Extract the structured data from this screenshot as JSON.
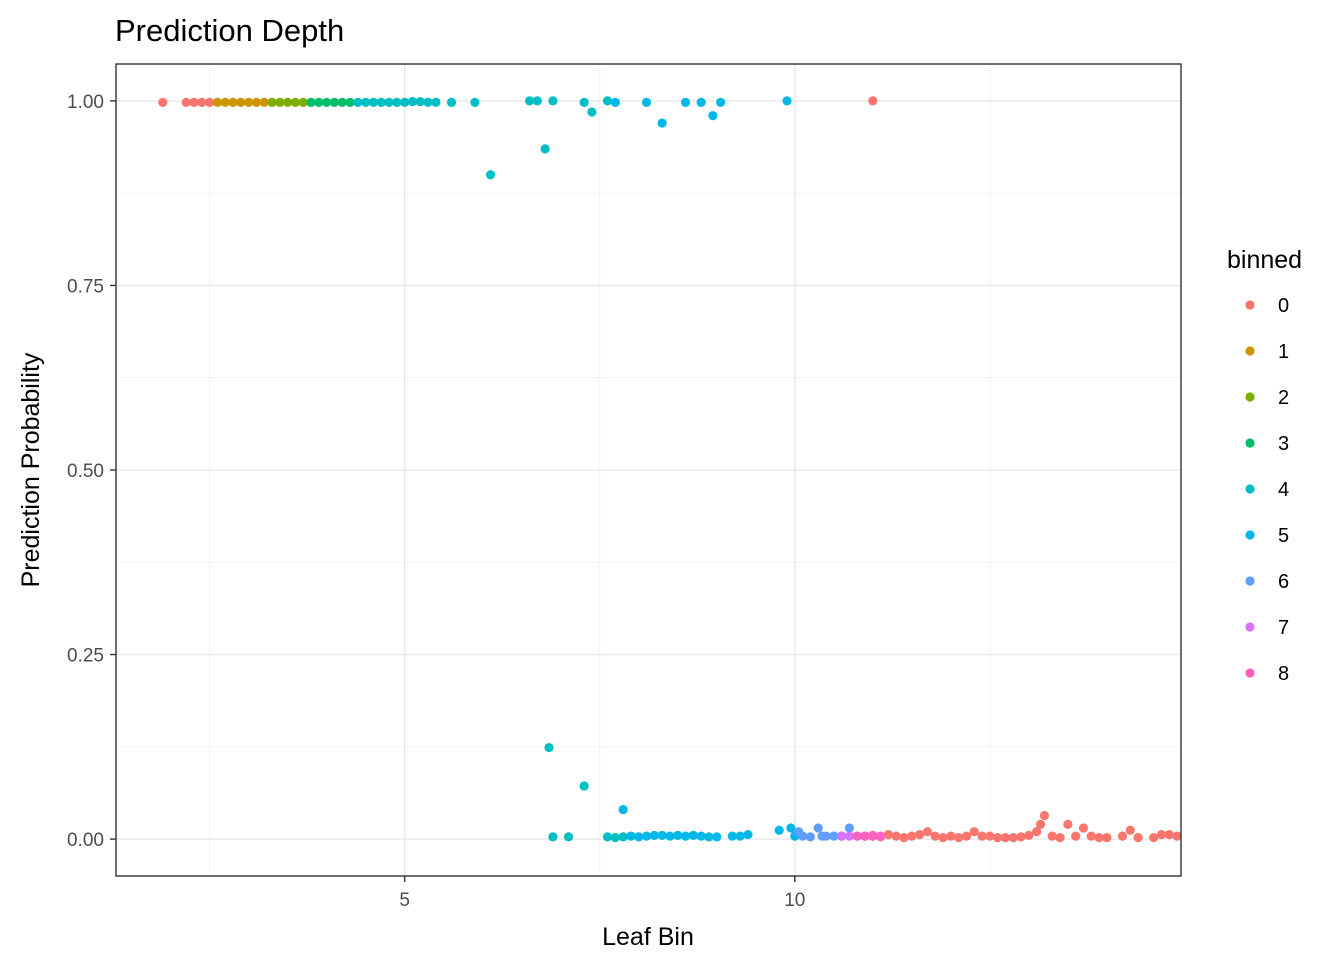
{
  "chart_data": {
    "type": "scatter",
    "title": "Prediction Depth",
    "xlabel": "Leaf Bin",
    "ylabel": "Prediction Probability",
    "xlim": [
      1.3,
      14.95
    ],
    "ylim": [
      -0.05,
      1.05
    ],
    "x_ticks": [
      5,
      10
    ],
    "x_tick_labels": [
      "5",
      "10"
    ],
    "y_ticks": [
      0,
      0.25,
      0.5,
      0.75,
      1
    ],
    "y_tick_labels": [
      "0.00",
      "0.25",
      "0.50",
      "0.75",
      "1.00"
    ],
    "grid": true,
    "legend": {
      "title": "binned",
      "position": "right"
    },
    "series": [
      {
        "name": "0",
        "color": "#F8766D",
        "points": [
          [
            1.9,
            0.998
          ],
          [
            2.2,
            0.998
          ],
          [
            2.3,
            0.998
          ],
          [
            2.4,
            0.998
          ],
          [
            2.5,
            0.998
          ],
          [
            11.0,
            1.0
          ],
          [
            10.9,
            0.004
          ],
          [
            11.0,
            0.005
          ],
          [
            11.1,
            0.003
          ],
          [
            11.2,
            0.006
          ],
          [
            11.3,
            0.004
          ],
          [
            11.4,
            0.002
          ],
          [
            11.5,
            0.004
          ],
          [
            11.6,
            0.006
          ],
          [
            11.7,
            0.01
          ],
          [
            11.8,
            0.004
          ],
          [
            11.9,
            0.002
          ],
          [
            12.0,
            0.004
          ],
          [
            12.1,
            0.002
          ],
          [
            12.2,
            0.004
          ],
          [
            12.3,
            0.01
          ],
          [
            12.4,
            0.004
          ],
          [
            12.5,
            0.004
          ],
          [
            12.6,
            0.002
          ],
          [
            12.7,
            0.002
          ],
          [
            12.8,
            0.002
          ],
          [
            12.9,
            0.003
          ],
          [
            13.0,
            0.005
          ],
          [
            13.1,
            0.01
          ],
          [
            13.15,
            0.02
          ],
          [
            13.2,
            0.032
          ],
          [
            13.3,
            0.004
          ],
          [
            13.4,
            0.002
          ],
          [
            13.5,
            0.02
          ],
          [
            13.6,
            0.004
          ],
          [
            13.7,
            0.015
          ],
          [
            13.8,
            0.004
          ],
          [
            13.9,
            0.002
          ],
          [
            14.0,
            0.002
          ],
          [
            14.2,
            0.004
          ],
          [
            14.3,
            0.012
          ],
          [
            14.4,
            0.002
          ],
          [
            14.6,
            0.002
          ],
          [
            14.7,
            0.006
          ],
          [
            14.8,
            0.006
          ],
          [
            14.9,
            0.004
          ]
        ]
      },
      {
        "name": "1",
        "color": "#CD9600",
        "points": [
          [
            2.6,
            0.998
          ],
          [
            2.7,
            0.998
          ],
          [
            2.8,
            0.998
          ],
          [
            2.9,
            0.998
          ],
          [
            3.0,
            0.998
          ],
          [
            3.1,
            0.998
          ],
          [
            3.2,
            0.998
          ]
        ]
      },
      {
        "name": "2",
        "color": "#7CAE00",
        "points": [
          [
            3.3,
            0.998
          ],
          [
            3.4,
            0.998
          ],
          [
            3.5,
            0.998
          ],
          [
            3.6,
            0.998
          ],
          [
            3.7,
            0.998
          ]
        ]
      },
      {
        "name": "3",
        "color": "#00BE67",
        "points": [
          [
            3.8,
            0.998
          ],
          [
            3.9,
            0.998
          ],
          [
            4.0,
            0.998
          ],
          [
            4.1,
            0.998
          ],
          [
            4.2,
            0.998
          ],
          [
            4.3,
            0.998
          ]
        ]
      },
      {
        "name": "4",
        "color": "#00BFC4",
        "points": [
          [
            4.4,
            0.998
          ],
          [
            4.5,
            0.998
          ],
          [
            4.6,
            0.998
          ],
          [
            4.7,
            0.998
          ],
          [
            4.8,
            0.998
          ],
          [
            4.9,
            0.998
          ],
          [
            5.0,
            0.998
          ],
          [
            5.1,
            0.999
          ],
          [
            5.2,
            0.999
          ],
          [
            5.3,
            0.998
          ],
          [
            5.4,
            0.998
          ],
          [
            5.6,
            0.998
          ],
          [
            5.9,
            0.998
          ],
          [
            6.1,
            0.9
          ],
          [
            6.6,
            1.0
          ],
          [
            6.7,
            1.0
          ],
          [
            6.8,
            0.935
          ],
          [
            6.9,
            1.0
          ],
          [
            7.3,
            0.998
          ],
          [
            7.4,
            0.985
          ],
          [
            7.6,
            1.0
          ],
          [
            6.85,
            0.124
          ],
          [
            7.3,
            0.072
          ],
          [
            6.9,
            0.003
          ],
          [
            7.1,
            0.003
          ],
          [
            7.6,
            0.003
          ],
          [
            7.7,
            0.002
          ],
          [
            7.8,
            0.003
          ]
        ]
      },
      {
        "name": "5",
        "color": "#00B8E7",
        "points": [
          [
            7.7,
            0.998
          ],
          [
            8.1,
            0.998
          ],
          [
            8.3,
            0.97
          ],
          [
            8.6,
            0.998
          ],
          [
            8.8,
            0.998
          ],
          [
            8.95,
            0.98
          ],
          [
            9.05,
            0.998
          ],
          [
            9.9,
            1.0
          ],
          [
            7.8,
            0.04
          ],
          [
            7.9,
            0.004
          ],
          [
            8.0,
            0.003
          ],
          [
            8.1,
            0.004
          ],
          [
            8.2,
            0.005
          ],
          [
            8.3,
            0.005
          ],
          [
            8.4,
            0.004
          ],
          [
            8.5,
            0.005
          ],
          [
            8.6,
            0.004
          ],
          [
            8.7,
            0.005
          ],
          [
            8.8,
            0.004
          ],
          [
            8.9,
            0.003
          ],
          [
            9.0,
            0.003
          ],
          [
            9.2,
            0.004
          ],
          [
            9.3,
            0.004
          ],
          [
            9.4,
            0.006
          ],
          [
            9.8,
            0.012
          ],
          [
            9.95,
            0.015
          ],
          [
            10.0,
            0.004
          ]
        ]
      },
      {
        "name": "6",
        "color": "#619CFF",
        "points": [
          [
            10.05,
            0.01
          ],
          [
            10.1,
            0.004
          ],
          [
            10.2,
            0.003
          ],
          [
            10.3,
            0.015
          ],
          [
            10.35,
            0.004
          ],
          [
            10.4,
            0.004
          ],
          [
            10.5,
            0.004
          ],
          [
            10.6,
            0.004
          ],
          [
            10.7,
            0.015
          ]
        ]
      },
      {
        "name": "7",
        "color": "#DB72FB",
        "points": [
          [
            10.6,
            0.004
          ],
          [
            10.7,
            0.004
          ],
          [
            10.8,
            0.004
          ],
          [
            10.9,
            0.004
          ],
          [
            11.0,
            0.004
          ]
        ]
      },
      {
        "name": "8",
        "color": "#FF61C3",
        "points": [
          [
            10.8,
            0.004
          ],
          [
            10.9,
            0.004
          ],
          [
            11.0,
            0.004
          ],
          [
            11.1,
            0.004
          ]
        ]
      }
    ]
  }
}
